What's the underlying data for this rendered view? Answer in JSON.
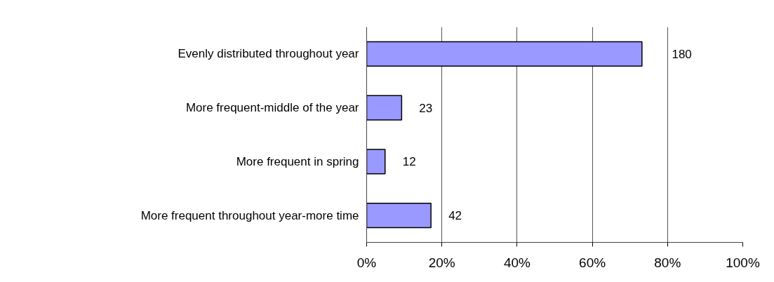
{
  "chart_data": {
    "type": "bar",
    "orientation": "horizontal",
    "categories": [
      "Evenly distributed throughout year",
      "More frequent-middle of the year",
      "More frequent in spring",
      "More frequent throughout year-more time"
    ],
    "values": [
      73.2,
      9.3,
      4.9,
      17.1
    ],
    "annotations": [
      {
        "text": "180",
        "x": 73.2,
        "y": "Evenly distributed throughout year"
      },
      {
        "text": "23",
        "x": 9.3,
        "y": "More frequent-middle of the year"
      },
      {
        "text": "12",
        "x": 4.9,
        "y": "More frequent in spring"
      },
      {
        "text": "42",
        "x": 17.1,
        "y": "More frequent throughout year-more time"
      }
    ],
    "color": "#9999ff",
    "xlim": [
      0,
      100
    ],
    "xticks": [
      {
        "value": 0,
        "label": "0%"
      },
      {
        "value": 20,
        "label": "20%"
      },
      {
        "value": 40,
        "label": "40%"
      },
      {
        "value": 60,
        "label": "60%"
      },
      {
        "value": 80,
        "label": "80%"
      },
      {
        "value": 100,
        "label": "100%"
      }
    ],
    "grid": "x"
  }
}
